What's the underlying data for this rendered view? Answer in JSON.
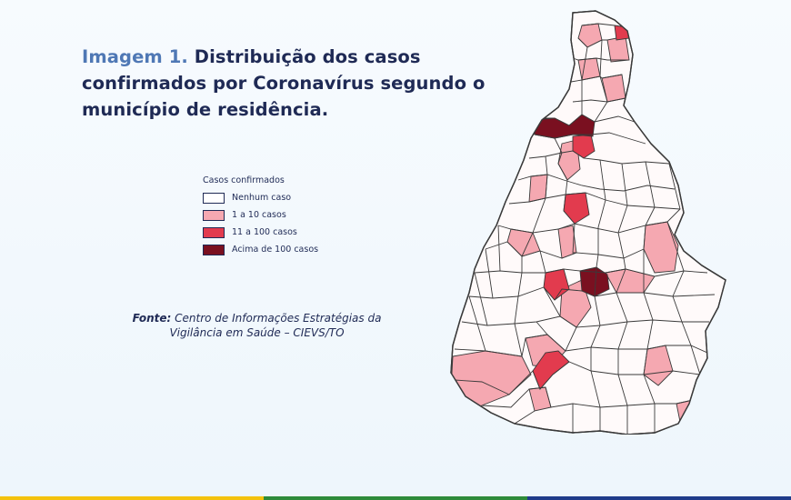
{
  "header": {
    "title_prefix": "Imagem 1.",
    "title_text": "Distribuição dos casos confirmados por Coronavírus segundo o município de residência."
  },
  "legend": {
    "title": "Casos confirmados",
    "items": [
      {
        "label": "Nenhum caso",
        "color": "#ffffff"
      },
      {
        "label": "1 a 10 casos",
        "color": "#f5a8b1"
      },
      {
        "label": "11 a 100 casos",
        "color": "#e23b4e"
      },
      {
        "label": "Acima de 100 casos",
        "color": "#7a1020"
      }
    ]
  },
  "source": {
    "label": "Fonte:",
    "text": "Centro de Informações Estratégias da Vigilância em Saúde – CIEVS/TO"
  },
  "map": {
    "region": "Tocantins",
    "colors": {
      "none": "#fffafa",
      "low": "#f5a8b1",
      "mid": "#e23b4e",
      "high": "#7a1020",
      "border": "#3a3a3a"
    }
  },
  "footer": {
    "stripe_colors": [
      "#f4c20d",
      "#2e8b3a",
      "#1f3b8a"
    ]
  }
}
